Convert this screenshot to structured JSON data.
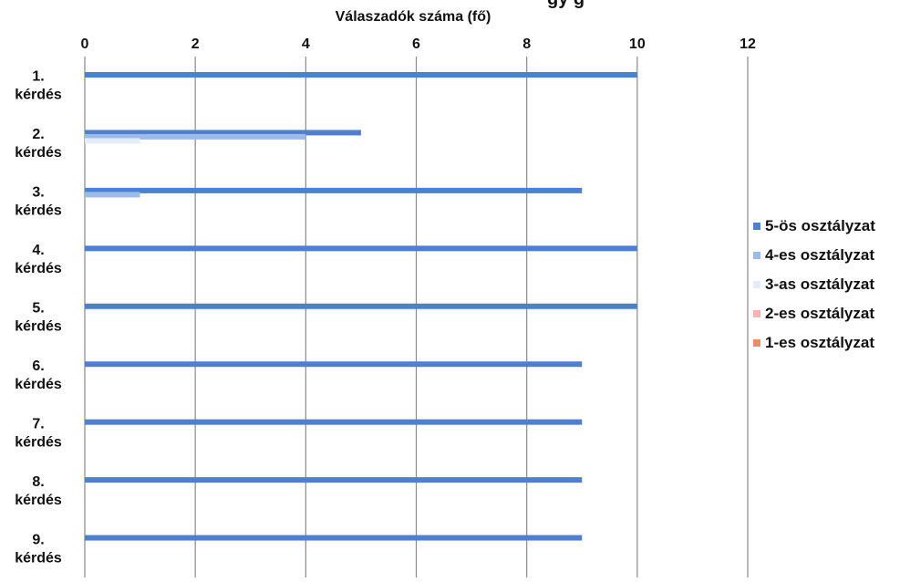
{
  "chart_data": {
    "type": "bar",
    "orientation": "horizontal",
    "title_partial": "gy     g",
    "xlabel": "Válaszadók száma (fő)",
    "xlim": [
      0,
      12
    ],
    "xticks": [
      "0",
      "2",
      "4",
      "6",
      "8",
      "10",
      "12"
    ],
    "grid": true,
    "legend_position": "right",
    "categories": [
      [
        "1.",
        "kérdés"
      ],
      [
        "2.",
        "kérdés"
      ],
      [
        "3.",
        "kérdés"
      ],
      [
        "4.",
        "kérdés"
      ],
      [
        "5.",
        "kérdés"
      ],
      [
        "6.",
        "kérdés"
      ],
      [
        "7.",
        "kérdés"
      ],
      [
        "8.",
        "kérdés"
      ],
      [
        "9.",
        "kérdés"
      ]
    ],
    "series": [
      {
        "name": "5-ös osztályzat",
        "color": "#4f7fd0",
        "values": [
          10,
          5,
          9,
          10,
          10,
          9,
          9,
          9,
          9
        ]
      },
      {
        "name": "4-es osztályzat",
        "color": "#9dbbe8",
        "values": [
          0,
          4,
          1,
          0,
          0,
          0,
          0,
          0,
          0
        ]
      },
      {
        "name": "3-as osztályzat",
        "color": "#e6ecf6",
        "values": [
          0,
          1,
          0,
          0,
          0,
          0,
          0,
          0,
          0
        ]
      },
      {
        "name": "2-es osztályzat",
        "color": "#f4b4b4",
        "values": [
          0,
          0,
          0,
          0,
          0,
          0,
          0,
          0,
          0
        ]
      },
      {
        "name": "1-es osztályzat",
        "color": "#f08a6c",
        "values": [
          0,
          0,
          0,
          0,
          0,
          0,
          0,
          0,
          0
        ]
      }
    ]
  }
}
